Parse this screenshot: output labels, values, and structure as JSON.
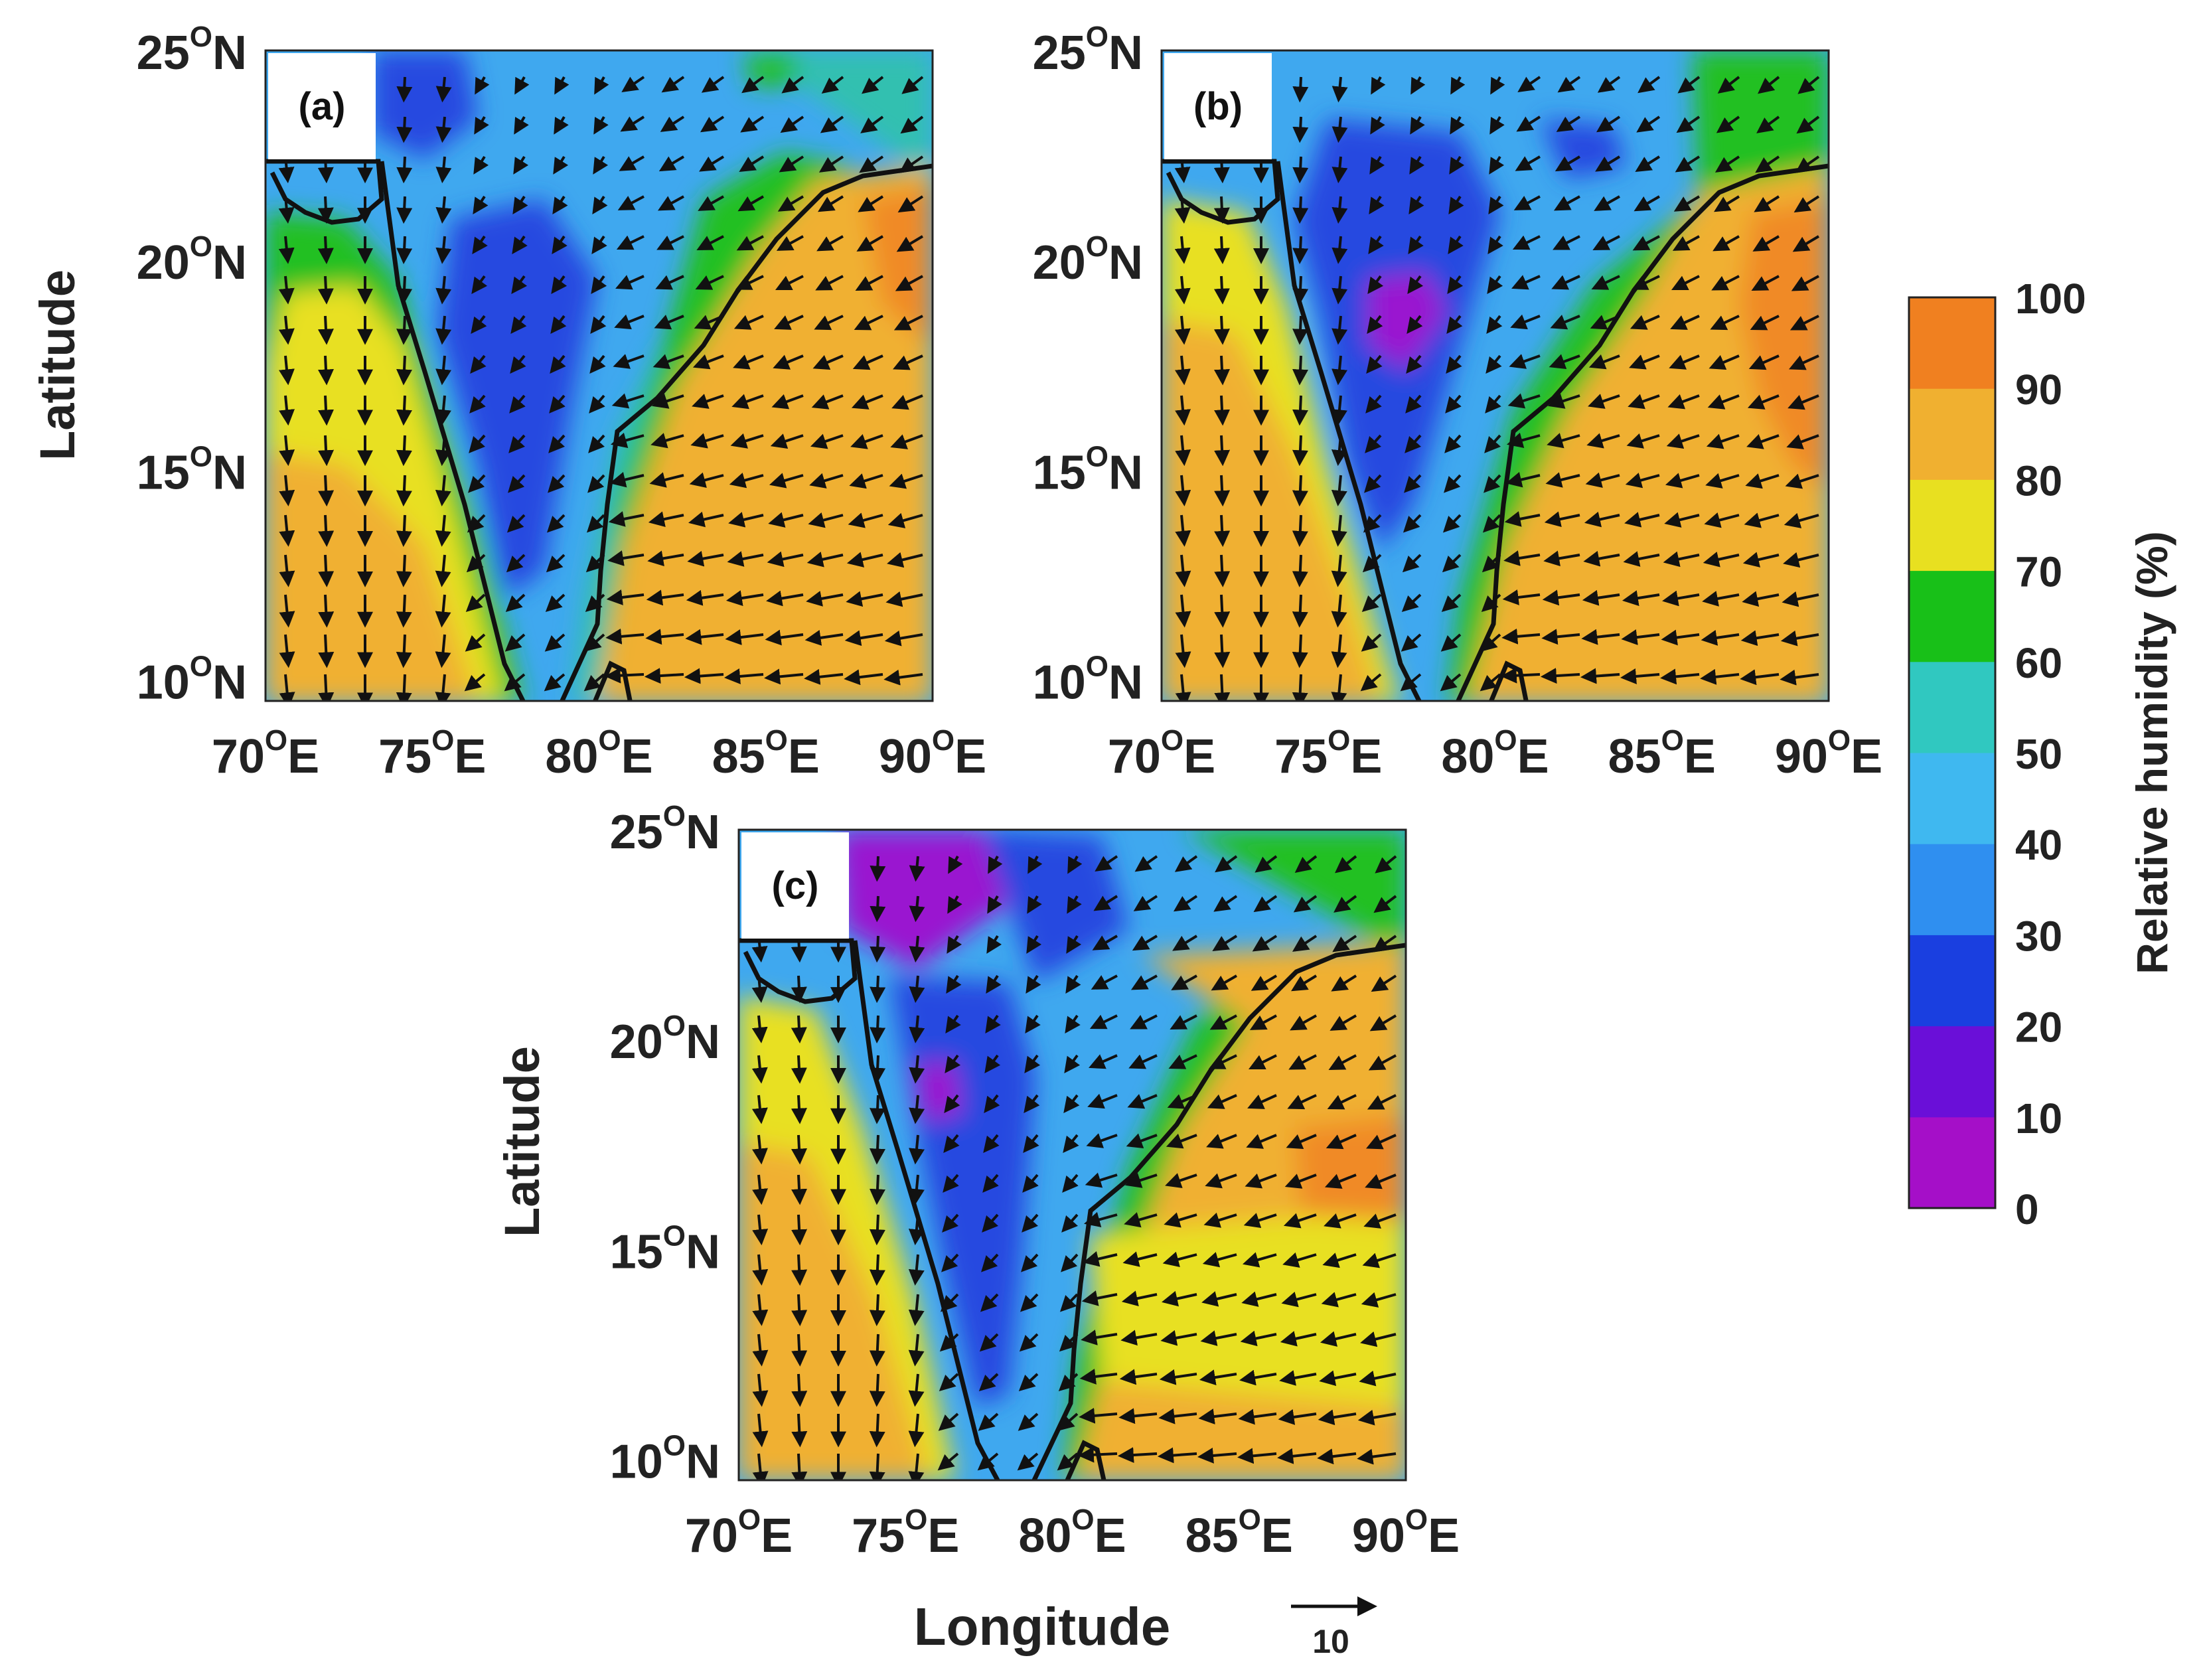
{
  "panels": [
    {
      "tag": "(a)",
      "lat_ticks": [
        "25",
        "20",
        "15",
        "10"
      ],
      "lon_ticks": [
        "70",
        "75",
        "80",
        "85",
        "90"
      ],
      "ylabel": "Latitude"
    },
    {
      "tag": "(b)",
      "lat_ticks": [
        "25",
        "20",
        "15",
        "10"
      ],
      "lon_ticks": [
        "70",
        "75",
        "80",
        "85",
        "90"
      ],
      "ylabel": ""
    },
    {
      "tag": "(c)",
      "lat_ticks": [
        "25",
        "20",
        "15",
        "10"
      ],
      "lon_ticks": [
        "70",
        "75",
        "80",
        "85",
        "90"
      ],
      "ylabel": "Latitude"
    }
  ],
  "lat_unit": "N",
  "lon_unit": "E",
  "degree_symbol": "O",
  "xlabel": "Longitude",
  "reference_vector": {
    "value": "10"
  },
  "colorbar": {
    "label": "Relative humidity (%)",
    "ticks": [
      "0",
      "10",
      "20",
      "30",
      "40",
      "50",
      "60",
      "70",
      "80",
      "90",
      "100"
    ],
    "colors": [
      "#a50fc8",
      "#6a0fd8",
      "#1a3fe0",
      "#2f8ff0",
      "#3fb8f0",
      "#30c8c0",
      "#18c018",
      "#e8e020",
      "#f0b030",
      "#f08020",
      "#f02020"
    ]
  },
  "map_colors": {
    "land_west": "#f0b030",
    "land_east": "#f0a030",
    "sea_mid": "#3fa8ef",
    "low": "#2548e0",
    "very_low": "#9a18d0",
    "teal": "#30c0b0",
    "green": "#20c020",
    "yellow": "#e8e020",
    "orange": "#f08a28"
  }
}
